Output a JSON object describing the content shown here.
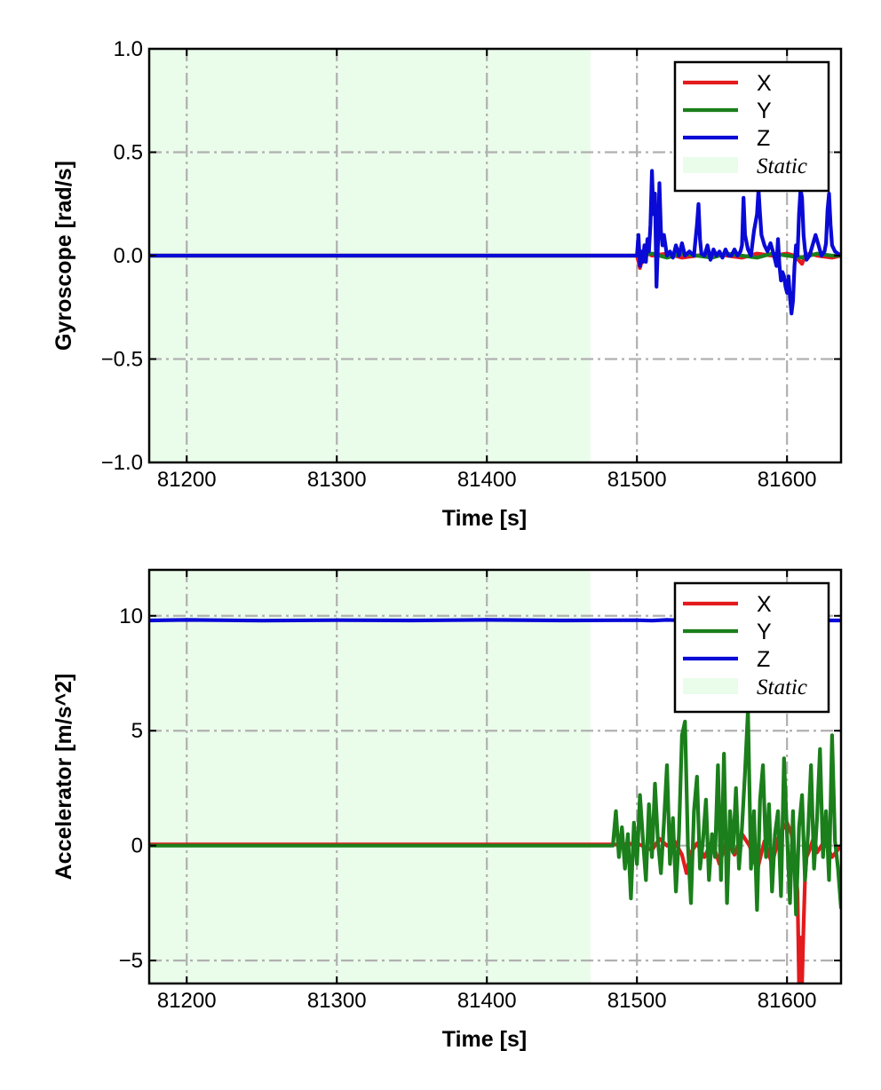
{
  "chart_data": [
    {
      "type": "line",
      "title": "",
      "xlabel": "Time [s]",
      "ylabel": "Gyroscope [rad/s]",
      "xlim": [
        81175,
        81636
      ],
      "ylim": [
        -1.0,
        1.0
      ],
      "xticks": [
        81200,
        81300,
        81400,
        81500,
        81600
      ],
      "yticks": [
        -1.0,
        -0.5,
        0.0,
        0.5,
        1.0
      ],
      "ytick_labels": [
        "−1.0",
        "−0.5",
        "0.0",
        "0.5",
        "1.0"
      ],
      "xtick_labels": [
        "81200",
        "81300",
        "81400",
        "81500",
        "81600"
      ],
      "grid": true,
      "legend_position": "top-right",
      "static_region": [
        81175,
        81469
      ],
      "series": [
        {
          "name": "X",
          "color": "#e41a1c",
          "x": [
            81175,
            81500,
            81502,
            81505,
            81510,
            81520,
            81530,
            81540,
            81550,
            81560,
            81570,
            81580,
            81590,
            81600,
            81605,
            81610,
            81612,
            81615,
            81620,
            81630,
            81636
          ],
          "y": [
            0,
            0,
            -0.06,
            0.02,
            0,
            0.01,
            -0.01,
            0,
            0.01,
            0,
            -0.01,
            0.01,
            0,
            0.01,
            0,
            -0.04,
            0.0,
            0.01,
            0,
            -0.01,
            0
          ]
        },
        {
          "name": "Y",
          "color": "#1b7f1b",
          "x": [
            81175,
            81500,
            81510,
            81520,
            81530,
            81540,
            81550,
            81560,
            81570,
            81580,
            81590,
            81600,
            81610,
            81620,
            81630,
            81636
          ],
          "y": [
            0,
            0,
            0.01,
            -0.01,
            0.01,
            0,
            -0.01,
            0.01,
            0,
            -0.01,
            0.01,
            0,
            -0.01,
            0.01,
            0,
            0
          ]
        },
        {
          "name": "Z",
          "color": "#0a0ad6",
          "x": [
            81175,
            81500,
            81501,
            81502,
            81503,
            81504,
            81505,
            81506,
            81507,
            81508,
            81509,
            81510,
            81511,
            81512,
            81513,
            81514,
            81515,
            81516,
            81517,
            81518,
            81520,
            81522,
            81524,
            81526,
            81528,
            81530,
            81532,
            81535,
            81538,
            81540,
            81541,
            81542,
            81543,
            81545,
            81547,
            81549,
            81551,
            81553,
            81555,
            81557,
            81559,
            81561,
            81563,
            81565,
            81567,
            81569,
            81570,
            81571,
            81572,
            81574,
            81576,
            81578,
            81580,
            81581,
            81582,
            81583,
            81585,
            81587,
            81589,
            81591,
            81593,
            81594,
            81595,
            81596,
            81597,
            81598,
            81599,
            81600,
            81601,
            81602,
            81603,
            81604,
            81605,
            81606,
            81607,
            81608,
            81609,
            81610,
            81611,
            81612,
            81613,
            81615,
            81617,
            81619,
            81621,
            81623,
            81625,
            81626,
            81627,
            81628,
            81629,
            81630,
            81632,
            81636
          ],
          "y": [
            0,
            0,
            0.1,
            -0.05,
            0.02,
            -0.03,
            0.05,
            -0.03,
            0.08,
            0.02,
            0.15,
            0.41,
            0.2,
            0.3,
            -0.15,
            0.05,
            0.35,
            0.12,
            0.05,
            0.1,
            0.0,
            0.02,
            -0.01,
            0.05,
            0.0,
            0.06,
            0.0,
            0.02,
            0.0,
            0.15,
            0.25,
            0.08,
            0.01,
            0.0,
            0.05,
            -0.02,
            0.03,
            0.0,
            0.02,
            -0.01,
            0.03,
            0.0,
            0.0,
            0.03,
            0.0,
            0.02,
            0.05,
            0.28,
            0.1,
            0.03,
            0.0,
            0.12,
            0.2,
            0.32,
            0.2,
            0.1,
            0.05,
            0.02,
            0.06,
            0.01,
            -0.05,
            0.08,
            -0.05,
            -0.12,
            -0.08,
            -0.1,
            -0.15,
            -0.18,
            -0.1,
            -0.2,
            -0.28,
            -0.22,
            -0.05,
            0.05,
            0.0,
            0.2,
            0.32,
            0.28,
            0.1,
            0.03,
            -0.02,
            0.0,
            0.05,
            0.1,
            0.05,
            0.0,
            0.02,
            0.06,
            0.22,
            0.3,
            0.15,
            0.05,
            0.02,
            0.0
          ]
        }
      ]
    },
    {
      "type": "line",
      "title": "",
      "xlabel": "Time [s]",
      "ylabel": "Accelerator [m/s^2]",
      "xlim": [
        81175,
        81636
      ],
      "ylim": [
        -6,
        12
      ],
      "xticks": [
        81200,
        81300,
        81400,
        81500,
        81600
      ],
      "yticks": [
        -5,
        0,
        5,
        10
      ],
      "ytick_labels": [
        "−5",
        "0",
        "5",
        "10"
      ],
      "xtick_labels": [
        "81200",
        "81300",
        "81400",
        "81500",
        "81600"
      ],
      "grid": true,
      "legend_position": "top-right",
      "static_region": [
        81175,
        81469
      ],
      "series": [
        {
          "name": "X",
          "color": "#e41a1c",
          "x": [
            81175,
            81490,
            81500,
            81510,
            81515,
            81520,
            81525,
            81530,
            81533,
            81536,
            81540,
            81545,
            81550,
            81555,
            81560,
            81565,
            81570,
            81575,
            81578,
            81580,
            81585,
            81590,
            81595,
            81600,
            81603,
            81605,
            81607,
            81608,
            81609,
            81610,
            81611,
            81612,
            81613,
            81615,
            81618,
            81620,
            81625,
            81630,
            81636
          ],
          "y": [
            0.05,
            0.05,
            0.1,
            -0.2,
            0.3,
            0.0,
            0.2,
            -0.4,
            -1.2,
            -0.3,
            0.1,
            -0.5,
            0.2,
            -0.8,
            0.3,
            -0.4,
            0.5,
            0.0,
            -0.6,
            -1.1,
            0.2,
            -0.8,
            0.5,
            1.0,
            0.5,
            -0.5,
            -2.0,
            -6.0,
            -4.0,
            -6.0,
            -3.5,
            -1.5,
            -0.5,
            -0.2,
            0.4,
            -0.3,
            0.2,
            -0.5,
            0.0
          ]
        },
        {
          "name": "Y",
          "color": "#1b7f1b",
          "x": [
            81175,
            81484,
            81486,
            81488,
            81490,
            81492,
            81494,
            81496,
            81498,
            81500,
            81502,
            81504,
            81506,
            81508,
            81510,
            81512,
            81514,
            81516,
            81518,
            81520,
            81522,
            81524,
            81526,
            81528,
            81530,
            81532,
            81534,
            81536,
            81538,
            81540,
            81542,
            81544,
            81546,
            81548,
            81550,
            81552,
            81554,
            81556,
            81558,
            81560,
            81562,
            81564,
            81566,
            81568,
            81570,
            81572,
            81574,
            81576,
            81578,
            81580,
            81582,
            81584,
            81586,
            81588,
            81590,
            81592,
            81594,
            81596,
            81598,
            81600,
            81602,
            81604,
            81606,
            81608,
            81610,
            81612,
            81614,
            81616,
            81618,
            81620,
            81622,
            81624,
            81626,
            81628,
            81630,
            81632,
            81634,
            81636
          ],
          "y": [
            0.0,
            0.0,
            1.5,
            -0.5,
            0.8,
            -1.0,
            0.5,
            -2.3,
            1.0,
            -0.8,
            2.2,
            0.3,
            -1.5,
            1.8,
            -0.5,
            2.7,
            0.2,
            -1.2,
            1.0,
            3.5,
            -0.8,
            1.2,
            -2.0,
            0.5,
            4.8,
            5.4,
            0.0,
            -2.5,
            1.5,
            3.0,
            -1.0,
            0.2,
            2.0,
            -1.5,
            0.5,
            -0.5,
            3.5,
            -1.5,
            4.0,
            -2.5,
            1.5,
            -0.3,
            2.5,
            -1.0,
            0.8,
            3.2,
            5.9,
            -1.0,
            1.5,
            -2.8,
            2.0,
            3.5,
            -0.5,
            1.8,
            -2.0,
            0.5,
            1.5,
            -2.2,
            3.8,
            0.5,
            -2.5,
            1.5,
            -3.0,
            0.8,
            2.2,
            -1.5,
            0.5,
            3.5,
            -1.0,
            1.2,
            4.2,
            -0.5,
            1.5,
            -1.5,
            4.8,
            0.2,
            -1.0,
            -2.7
          ]
        },
        {
          "name": "Z",
          "color": "#0a0ad6",
          "x": [
            81175,
            81200,
            81250,
            81300,
            81350,
            81400,
            81450,
            81500,
            81510,
            81520,
            81530,
            81540,
            81550,
            81560,
            81570,
            81580,
            81590,
            81600,
            81610,
            81620,
            81630,
            81636
          ],
          "y": [
            9.8,
            9.82,
            9.79,
            9.81,
            9.8,
            9.82,
            9.8,
            9.81,
            9.79,
            9.82,
            9.8,
            9.81,
            9.79,
            9.82,
            9.8,
            9.81,
            9.8,
            9.82,
            9.79,
            9.81,
            9.8,
            9.8
          ]
        }
      ]
    }
  ],
  "legend": {
    "entries": [
      "X",
      "Y",
      "Z",
      "Static"
    ],
    "static_color": "#eafcea"
  }
}
